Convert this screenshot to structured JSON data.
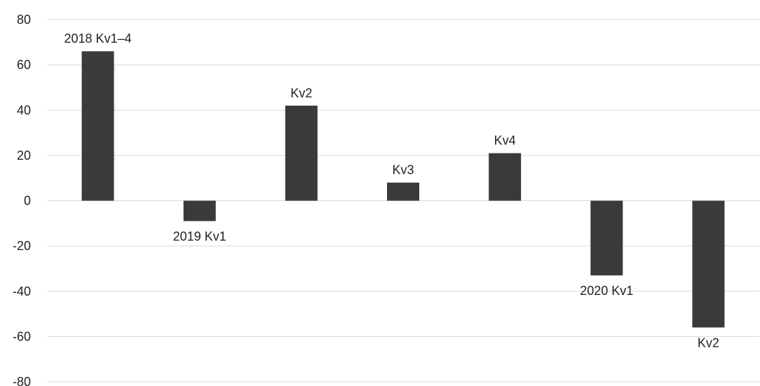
{
  "chart_data": {
    "type": "bar",
    "title": "",
    "xlabel": "",
    "ylabel": "",
    "ylim": [
      -80,
      80
    ],
    "yticks": [
      80,
      60,
      40,
      20,
      0,
      -20,
      -40,
      -60,
      -80
    ],
    "grid": true,
    "legend": "none",
    "bar_color": "#3a3a3a",
    "categories": [
      "2018 Kv1–4",
      "2019 Kv1",
      "Kv2",
      "Kv3",
      "Kv4",
      "2020 Kv1",
      "Kv2"
    ],
    "values": [
      66,
      -9,
      42,
      8,
      21,
      -33,
      -56
    ]
  }
}
